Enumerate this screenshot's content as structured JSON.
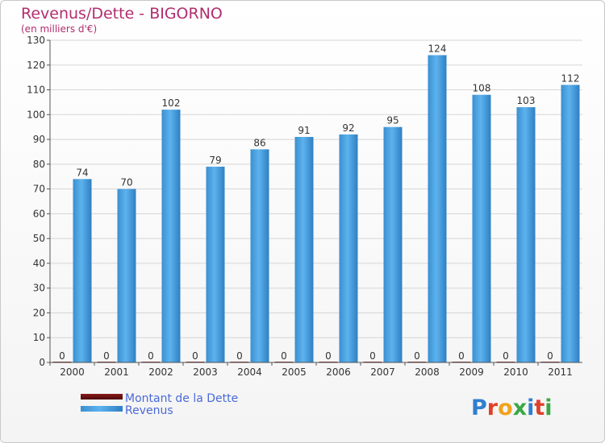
{
  "chart_data": {
    "type": "bar",
    "title": "Revenus/Dette - BIGORNO",
    "subtitle": "(en milliers d'€)",
    "categories": [
      "2000",
      "2001",
      "2002",
      "2003",
      "2004",
      "2005",
      "2006",
      "2007",
      "2008",
      "2009",
      "2010",
      "2011"
    ],
    "series": [
      {
        "name": "Montant de la Dette",
        "color": "#6b0f0f",
        "values": [
          0,
          0,
          0,
          0,
          0,
          0,
          0,
          0,
          0,
          0,
          0,
          0
        ]
      },
      {
        "name": "Revenus",
        "color": "#4da6e6",
        "values": [
          74,
          70,
          102,
          79,
          86,
          91,
          92,
          95,
          124,
          108,
          103,
          112
        ]
      }
    ],
    "ylim": [
      0,
      130
    ],
    "yticks": [
      0,
      10,
      20,
      30,
      40,
      50,
      60,
      70,
      80,
      90,
      100,
      110,
      120,
      130
    ],
    "grid": true,
    "legend": "bottom-left"
  },
  "brand": {
    "logo_text": "Proxiti"
  }
}
